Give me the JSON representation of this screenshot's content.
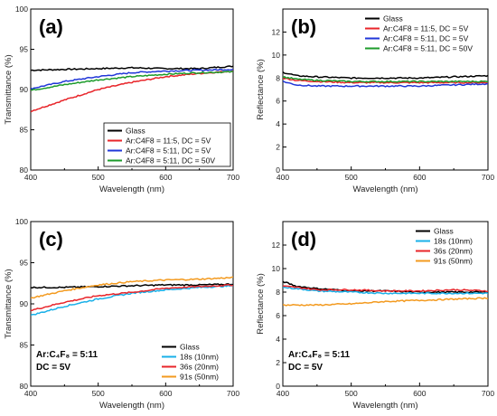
{
  "chart_data": [
    {
      "type": "line",
      "panel_label": "(a)",
      "xlabel": "Wavelength (nm)",
      "ylabel": "Transmittance (%)",
      "xlim": [
        400,
        700
      ],
      "ylim": [
        80,
        100
      ],
      "xticks": [
        400,
        500,
        600,
        700
      ],
      "yticks": [
        80,
        85,
        90,
        95,
        100
      ],
      "legend_position": "bottom-right",
      "annotation": [],
      "series": [
        {
          "name": "Glass",
          "color": "#000000",
          "x": [
            400,
            450,
            500,
            550,
            600,
            650,
            700
          ],
          "y": [
            92.4,
            92.5,
            92.6,
            92.7,
            92.6,
            92.6,
            92.9
          ]
        },
        {
          "name": "Ar:C4F8 = 11:5, DC = 5V",
          "color": "#e8252a",
          "x": [
            400,
            450,
            500,
            550,
            600,
            650,
            700
          ],
          "y": [
            87.3,
            88.7,
            90.0,
            90.9,
            91.6,
            92.0,
            92.3
          ]
        },
        {
          "name": "Ar:C4F8 = 5:11, DC = 5V",
          "color": "#2137d8",
          "x": [
            400,
            450,
            500,
            550,
            600,
            650,
            700
          ],
          "y": [
            90.1,
            91.0,
            91.6,
            92.1,
            92.3,
            92.4,
            92.5
          ]
        },
        {
          "name": "Ar:C4F8 = 5:11, DC = 50V",
          "color": "#1c9b2b",
          "x": [
            400,
            450,
            500,
            550,
            600,
            650,
            700
          ],
          "y": [
            89.9,
            90.6,
            91.2,
            91.6,
            91.9,
            92.1,
            92.2
          ]
        }
      ]
    },
    {
      "type": "line",
      "panel_label": "(b)",
      "xlabel": "Wavelength (nm)",
      "ylabel": "Reflectance (%)",
      "xlim": [
        400,
        700
      ],
      "ylim": [
        0,
        14
      ],
      "xticks": [
        400,
        500,
        600,
        700
      ],
      "yticks": [
        0,
        2,
        4,
        6,
        8,
        10,
        12
      ],
      "legend_position": "top-right",
      "annotation": [],
      "series": [
        {
          "name": "Glass",
          "color": "#000000",
          "x": [
            400,
            420,
            450,
            500,
            550,
            600,
            650,
            700
          ],
          "y": [
            8.5,
            8.2,
            8.1,
            8.0,
            8.0,
            8.0,
            8.1,
            8.2
          ]
        },
        {
          "name": "Ar:C4F8 = 11:5, DC = 5V",
          "color": "#e8252a",
          "x": [
            400,
            420,
            450,
            500,
            550,
            600,
            650,
            700
          ],
          "y": [
            8.0,
            7.8,
            7.7,
            7.6,
            7.6,
            7.6,
            7.6,
            7.6
          ]
        },
        {
          "name": "Ar:C4F8 = 5:11, DC = 5V",
          "color": "#2137d8",
          "x": [
            400,
            420,
            450,
            500,
            550,
            600,
            650,
            700
          ],
          "y": [
            7.7,
            7.4,
            7.3,
            7.3,
            7.3,
            7.3,
            7.4,
            7.5
          ]
        },
        {
          "name": "Ar:C4F8 = 5:11, DC = 50V",
          "color": "#1c9b2b",
          "x": [
            400,
            420,
            450,
            500,
            550,
            600,
            650,
            700
          ],
          "y": [
            8.1,
            7.9,
            7.8,
            7.7,
            7.7,
            7.7,
            7.7,
            7.7
          ]
        }
      ]
    },
    {
      "type": "line",
      "panel_label": "(c)",
      "xlabel": "Wavelength (nm)",
      "ylabel": "Transmittance (%)",
      "xlim": [
        400,
        700
      ],
      "ylim": [
        80,
        100
      ],
      "xticks": [
        400,
        500,
        600,
        700
      ],
      "yticks": [
        80,
        85,
        90,
        95,
        100
      ],
      "legend_position": "bottom-right",
      "annotation": [
        "Ar:C₄F₈ = 5:11",
        "DC = 5V"
      ],
      "series": [
        {
          "name": "Glass",
          "color": "#000000",
          "x": [
            400,
            450,
            500,
            550,
            600,
            650,
            700
          ],
          "y": [
            92.0,
            92.0,
            92.1,
            92.2,
            92.3,
            92.3,
            92.4
          ]
        },
        {
          "name": "18s (10nm)",
          "color": "#1ab0e8",
          "x": [
            400,
            450,
            500,
            550,
            600,
            650,
            700
          ],
          "y": [
            88.6,
            89.7,
            90.6,
            91.3,
            91.7,
            92.0,
            92.2
          ]
        },
        {
          "name": "36s (20nm)",
          "color": "#e8252a",
          "x": [
            400,
            450,
            500,
            550,
            600,
            650,
            700
          ],
          "y": [
            89.2,
            90.2,
            91.0,
            91.4,
            91.9,
            92.1,
            92.3
          ]
        },
        {
          "name": "91s (50nm)",
          "color": "#f39a1f",
          "x": [
            400,
            450,
            500,
            550,
            600,
            650,
            700
          ],
          "y": [
            90.7,
            91.6,
            92.3,
            92.7,
            92.9,
            93.0,
            93.2
          ]
        }
      ]
    },
    {
      "type": "line",
      "panel_label": "(d)",
      "xlabel": "Wavelength (nm)",
      "ylabel": "Reflectance (%)",
      "xlim": [
        400,
        700
      ],
      "ylim": [
        0,
        14
      ],
      "xticks": [
        400,
        500,
        600,
        700
      ],
      "yticks": [
        0,
        2,
        4,
        6,
        8,
        10,
        12
      ],
      "legend_position": "top-right",
      "annotation": [
        "Ar:C₄F₈ = 5:11",
        "DC = 5V"
      ],
      "series": [
        {
          "name": "Glass",
          "color": "#000000",
          "x": [
            400,
            420,
            450,
            500,
            550,
            600,
            650,
            700
          ],
          "y": [
            8.9,
            8.5,
            8.3,
            8.1,
            8.1,
            8.0,
            8.0,
            8.0
          ]
        },
        {
          "name": "18s (10nm)",
          "color": "#1ab0e8",
          "x": [
            400,
            420,
            450,
            500,
            550,
            600,
            650,
            700
          ],
          "y": [
            8.4,
            8.3,
            8.1,
            8.0,
            7.9,
            7.9,
            7.9,
            7.9
          ]
        },
        {
          "name": "36s (20nm)",
          "color": "#e8252a",
          "x": [
            400,
            420,
            450,
            500,
            550,
            600,
            650,
            700
          ],
          "y": [
            8.5,
            8.4,
            8.2,
            8.2,
            8.1,
            8.1,
            8.2,
            8.1
          ]
        },
        {
          "name": "91s (50nm)",
          "color": "#f39a1f",
          "x": [
            400,
            420,
            450,
            500,
            550,
            600,
            650,
            700
          ],
          "y": [
            6.9,
            6.9,
            6.9,
            7.0,
            7.2,
            7.3,
            7.4,
            7.5
          ]
        }
      ]
    }
  ]
}
